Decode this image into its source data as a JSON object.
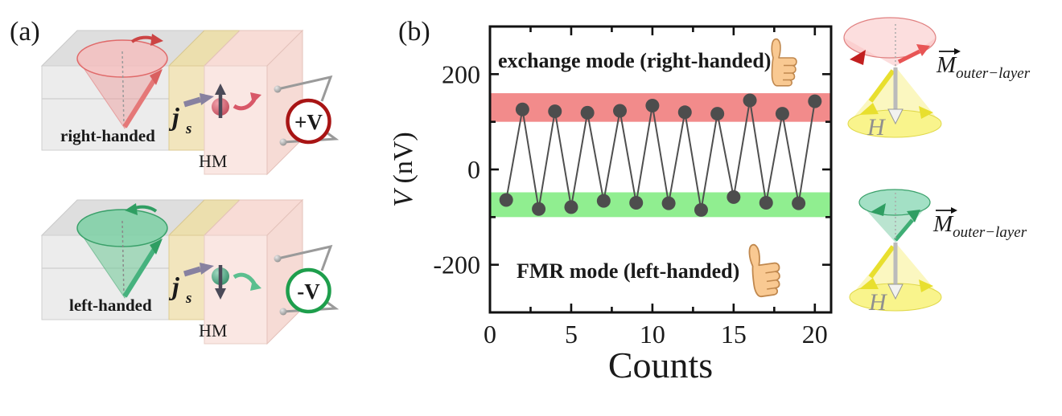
{
  "figure": {
    "panel_a_label": "(a)",
    "panel_b_label": "(b)"
  },
  "panel_a": {
    "top": {
      "handedness": "right-handed",
      "hm": "HM",
      "js_main": "j",
      "js_sub": "s",
      "voltage": "+V",
      "text_color": "#d42421",
      "ring_color": "#a81414",
      "cone_color": "#f2a0a0",
      "spin_sphere_color": "#d65f6f"
    },
    "bottom": {
      "handedness": "left-handed",
      "hm": "HM",
      "js_main": "j",
      "js_sub": "s",
      "voltage": "-V",
      "text_color": "#2fc55f",
      "ring_color": "#1e9e4c",
      "cone_color": "#7ccf9f",
      "spin_sphere_color": "#4fae8a"
    },
    "spin_current_arrow_color": "#8781a0"
  },
  "side_diagrams": {
    "top": {
      "m_main": "M",
      "m_sub": "outer−layer",
      "h": "H",
      "cone_color": "#f6b8b8",
      "field_cone_color": "#f6f282"
    },
    "bottom": {
      "m_main": "M",
      "m_sub": "outer−layer",
      "h": "H",
      "cone_color": "#8cd8b6",
      "field_cone_color": "#f6f282"
    },
    "thumbs_up_icon": "thumbs-up"
  },
  "chart_data": {
    "type": "scatter",
    "x": [
      1,
      2,
      3,
      4,
      5,
      6,
      7,
      8,
      9,
      10,
      11,
      12,
      13,
      14,
      15,
      16,
      17,
      18,
      19,
      20
    ],
    "values": [
      -64,
      126,
      -83,
      122,
      -79,
      119,
      -66,
      123,
      -70,
      134,
      -71,
      120,
      -85,
      117,
      -58,
      145,
      -70,
      117,
      -71,
      143
    ],
    "xlabel": "Counts",
    "ylabel": "V (nV)",
    "ylabel_var": "V",
    "ylabel_units": " (nV)",
    "xlim": [
      0,
      21
    ],
    "ylim": [
      -300,
      300
    ],
    "xticks_major": [
      0,
      5,
      10,
      15,
      20
    ],
    "xticks_minor": [
      2.5,
      7.5,
      12.5,
      17.5
    ],
    "yticks_major": [
      -200,
      0,
      200
    ],
    "yticks_minor": [
      -100,
      100
    ],
    "grid": false,
    "marker_color": "#4d4d4d",
    "line_color": "#4f4f4f",
    "bands": [
      {
        "name": "exchange mode (right-handed)",
        "ymin": 100,
        "ymax": 160,
        "fill": "#f28b8b",
        "text_color": "#d42421"
      },
      {
        "name": "FMR mode (left-handed)",
        "ymin": -100,
        "ymax": -48,
        "fill": "#90ee90",
        "text_color": "#3fca66"
      }
    ]
  }
}
